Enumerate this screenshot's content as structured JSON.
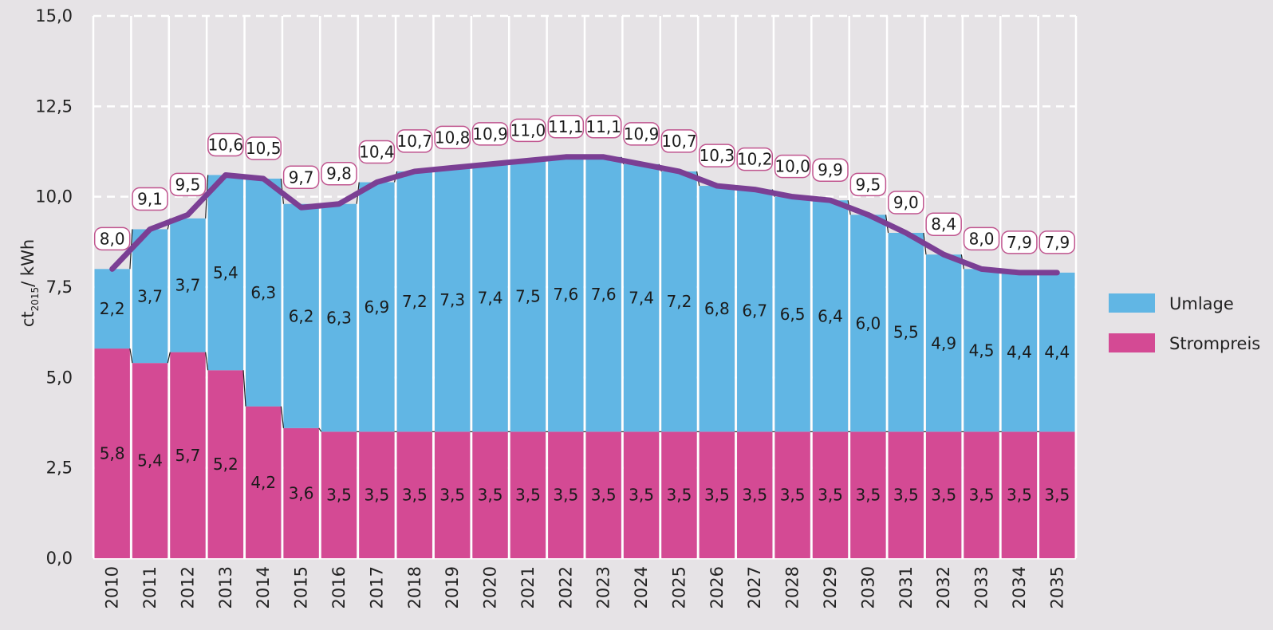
{
  "chart_data": {
    "type": "bar",
    "stacked": true,
    "categories": [
      "2010",
      "2011",
      "2012",
      "2013",
      "2014",
      "2015",
      "2016",
      "2017",
      "2018",
      "2019",
      "2020",
      "2021",
      "2022",
      "2023",
      "2024",
      "2025",
      "2026",
      "2027",
      "2028",
      "2029",
      "2030",
      "2031",
      "2032",
      "2033",
      "2034",
      "2035"
    ],
    "series": [
      {
        "name": "Strompreis",
        "color": "#d44a94",
        "values": [
          5.8,
          5.4,
          5.7,
          5.2,
          4.2,
          3.6,
          3.5,
          3.5,
          3.5,
          3.5,
          3.5,
          3.5,
          3.5,
          3.5,
          3.5,
          3.5,
          3.5,
          3.5,
          3.5,
          3.5,
          3.5,
          3.5,
          3.5,
          3.5,
          3.5,
          3.5
        ],
        "labels": [
          "5,8",
          "5,4",
          "5,7",
          "5,2",
          "4,2",
          "3,6",
          "3,5",
          "3,5",
          "3,5",
          "3,5",
          "3,5",
          "3,5",
          "3,5",
          "3,5",
          "3,5",
          "3,5",
          "3,5",
          "3,5",
          "3,5",
          "3,5",
          "3,5",
          "3,5",
          "3,5",
          "3,5",
          "3,5",
          "3,5"
        ]
      },
      {
        "name": "Umlage",
        "color": "#61b6e4",
        "values": [
          2.2,
          3.7,
          3.7,
          5.4,
          6.3,
          6.2,
          6.3,
          6.9,
          7.2,
          7.3,
          7.4,
          7.5,
          7.6,
          7.6,
          7.4,
          7.2,
          6.8,
          6.7,
          6.5,
          6.4,
          6.0,
          5.5,
          4.9,
          4.5,
          4.4,
          4.4
        ],
        "labels": [
          "2,2",
          "3,7",
          "3,7",
          "5,4",
          "6,3",
          "6,2",
          "6,3",
          "6,9",
          "7,2",
          "7,3",
          "7,4",
          "7,5",
          "7,6",
          "7,6",
          "7,4",
          "7,2",
          "6,8",
          "6,7",
          "6,5",
          "6,4",
          "6,0",
          "5,5",
          "4,9",
          "4,5",
          "4,4",
          "4,4"
        ]
      }
    ],
    "total": {
      "color": "#7b3f94",
      "values": [
        8.0,
        9.1,
        9.5,
        10.6,
        10.5,
        9.7,
        9.8,
        10.4,
        10.7,
        10.8,
        10.9,
        11.0,
        11.1,
        11.1,
        10.9,
        10.7,
        10.3,
        10.2,
        10.0,
        9.9,
        9.5,
        9.0,
        8.4,
        8.0,
        7.9,
        7.9
      ],
      "labels": [
        "8,0",
        "9,1",
        "9,5",
        "10,6",
        "10,5",
        "9,7",
        "9,8",
        "10,4",
        "10,7",
        "10,8",
        "10,9",
        "11,0",
        "11,1",
        "11,1",
        "10,9",
        "10,7",
        "10,3",
        "10,2",
        "10,0",
        "9,9",
        "9,5",
        "9,0",
        "8,4",
        "8,0",
        "7,9",
        "7,9"
      ]
    },
    "ylabel": "ct",
    "ylabel_subscript": "2015",
    "ylabel_unit": "/ kWh",
    "ylim": [
      0,
      15
    ],
    "yticks": [
      "0,0",
      "2,5",
      "5,0",
      "7,5",
      "10,0",
      "12,5",
      "15,0"
    ],
    "grid": true,
    "legend_placement": "right",
    "legend": [
      {
        "label": "Umlage",
        "color": "#61b6e4"
      },
      {
        "label": "Strompreis",
        "color": "#d44a94"
      }
    ]
  }
}
